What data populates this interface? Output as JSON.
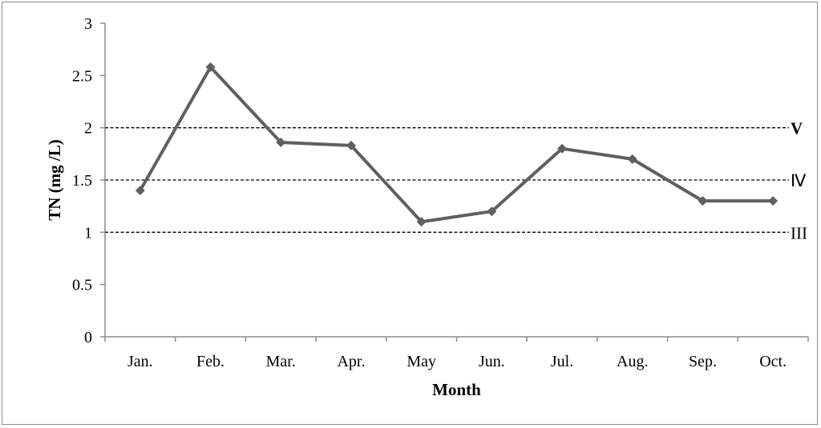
{
  "chart_data": {
    "type": "line",
    "categories": [
      "Jan.",
      "Feb.",
      "Mar.",
      "Apr.",
      "May",
      "Jun.",
      "Jul.",
      "Aug.",
      "Sep.",
      "Oct."
    ],
    "series": [
      {
        "values": [
          1.4,
          2.58,
          1.86,
          1.83,
          1.1,
          1.2,
          1.8,
          1.7,
          1.3,
          1.3
        ]
      }
    ],
    "xlabel": "Month",
    "ylabel": "TN (mg /L)",
    "ylim": [
      0,
      3
    ],
    "yticks": [
      "0",
      "0.5",
      "1",
      "1.5",
      "2",
      "2.5",
      "3"
    ],
    "reference_lines": [
      {
        "value": 2,
        "label": "V"
      },
      {
        "value": 1.5,
        "label": "Ⅳ"
      },
      {
        "value": 1,
        "label": "III"
      }
    ],
    "grid": false,
    "legend": "none",
    "colors": {
      "line": "#5f5f5f",
      "marker": "#5f5f5f",
      "reference": "#000000"
    }
  }
}
